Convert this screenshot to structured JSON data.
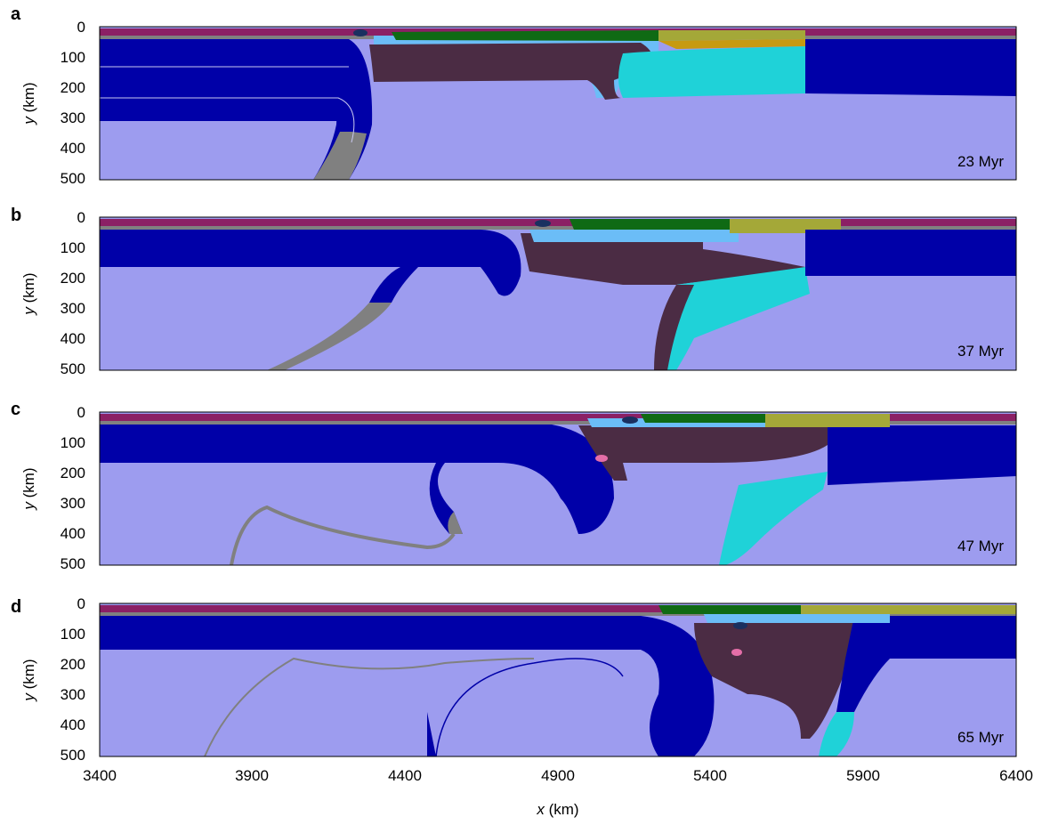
{
  "x_axis": {
    "ticks": [
      "3400",
      "3900",
      "4400",
      "4900",
      "5400",
      "5900",
      "6400"
    ],
    "label_var": "x",
    "label_unit": " (km)"
  },
  "y_axis": {
    "ticks": [
      "0",
      "100",
      "200",
      "300",
      "400",
      "500"
    ],
    "label_var": "y",
    "label_unit": " (km)"
  },
  "panels": [
    {
      "letter": "a",
      "time": "23 Myr"
    },
    {
      "letter": "b",
      "time": "37 Myr"
    },
    {
      "letter": "c",
      "time": "47 Myr"
    },
    {
      "letter": "d",
      "time": "65 Myr"
    }
  ],
  "colors": {
    "mantle": "#9d9cef",
    "lithosphere": "#0000a8",
    "subducted_crust": "#808080",
    "continental": "#4b2c44",
    "craton": "#1fd2d8",
    "sky": "#6bbdf7",
    "green": "#0f6a14",
    "olive": "#a4a838",
    "ochre": "#c79a11",
    "magenta": "#8b2065",
    "orange": "#e8760f",
    "pink": "#e46ea8"
  }
}
